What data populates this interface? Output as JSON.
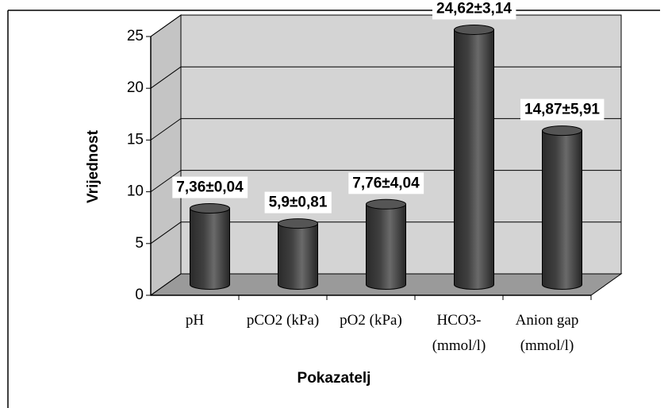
{
  "chart_data": {
    "type": "bar3d",
    "categories": [
      "pH",
      "pCO2 (kPa)",
      "pO2 (kPa)",
      "HCO3- (mmol/l)",
      "Anion gap (mmol/l)"
    ],
    "values": [
      7.36,
      5.9,
      7.76,
      24.62,
      14.87
    ],
    "value_labels": [
      "7,36±0,04",
      "5,9±0,81",
      "7,76±4,04",
      "24,62±3,14",
      "14,87±5,91"
    ],
    "color": "#404040",
    "x_label": "Pokazatelj",
    "y_label": "Vrijednost",
    "ylim": [
      0,
      25
    ],
    "yticks": [
      0,
      5,
      10,
      15,
      20,
      25
    ],
    "grid": true
  }
}
